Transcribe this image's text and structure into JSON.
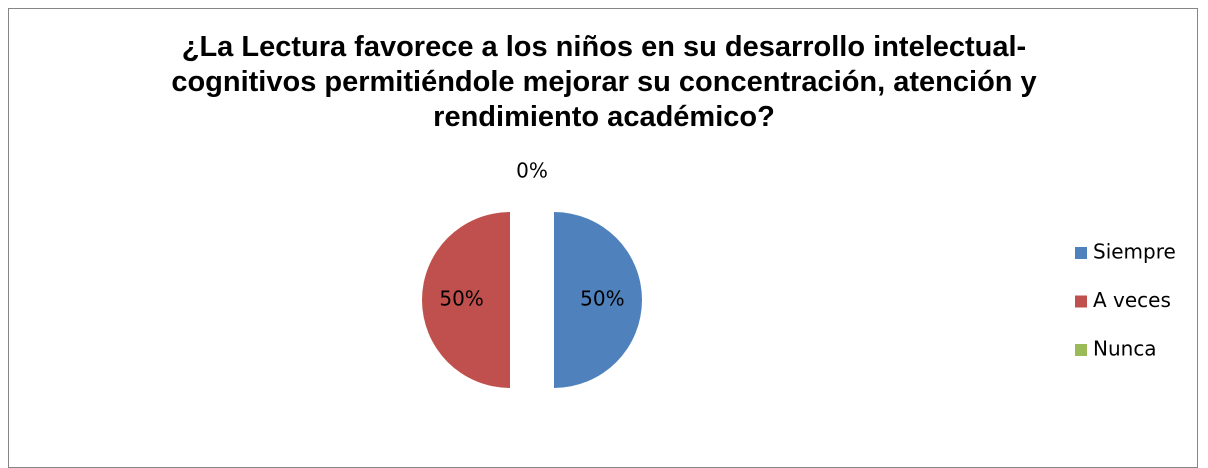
{
  "chart_data": {
    "type": "pie",
    "title": "¿La Lectura favorece a los niños en su desarrollo intelectual-cognitivos permitiéndole mejorar su concentración, atención y rendimiento académico?",
    "categories": [
      "Siempre",
      "A veces",
      "Nunca"
    ],
    "values": [
      50,
      50,
      0
    ],
    "value_labels": [
      "50%",
      "50%",
      "0%"
    ],
    "colors": [
      "#4f81bd",
      "#c0504d",
      "#9bbb59"
    ],
    "legend": "right"
  }
}
